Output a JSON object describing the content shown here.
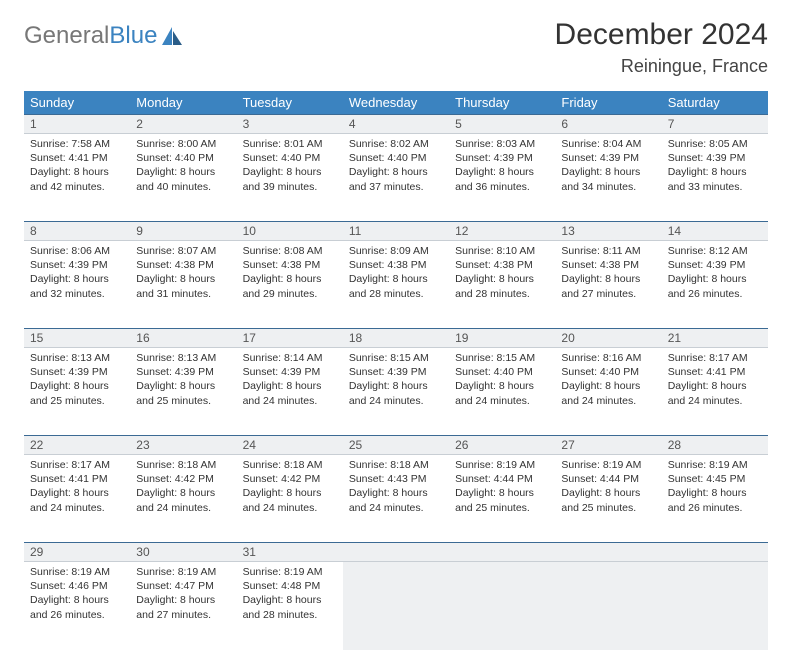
{
  "brand": {
    "part1": "General",
    "part2": "Blue"
  },
  "title": "December 2024",
  "location": "Reiningue, France",
  "colors": {
    "header_bg": "#3b83c0",
    "header_fg": "#ffffff",
    "daynum_bg": "#eef0f2",
    "daynum_border_top": "#3b6a94",
    "text": "#333333"
  },
  "weekdays": [
    "Sunday",
    "Monday",
    "Tuesday",
    "Wednesday",
    "Thursday",
    "Friday",
    "Saturday"
  ],
  "weeks": [
    [
      {
        "n": "1",
        "sr": "Sunrise: 7:58 AM",
        "ss": "Sunset: 4:41 PM",
        "dl": "Daylight: 8 hours and 42 minutes."
      },
      {
        "n": "2",
        "sr": "Sunrise: 8:00 AM",
        "ss": "Sunset: 4:40 PM",
        "dl": "Daylight: 8 hours and 40 minutes."
      },
      {
        "n": "3",
        "sr": "Sunrise: 8:01 AM",
        "ss": "Sunset: 4:40 PM",
        "dl": "Daylight: 8 hours and 39 minutes."
      },
      {
        "n": "4",
        "sr": "Sunrise: 8:02 AM",
        "ss": "Sunset: 4:40 PM",
        "dl": "Daylight: 8 hours and 37 minutes."
      },
      {
        "n": "5",
        "sr": "Sunrise: 8:03 AM",
        "ss": "Sunset: 4:39 PM",
        "dl": "Daylight: 8 hours and 36 minutes."
      },
      {
        "n": "6",
        "sr": "Sunrise: 8:04 AM",
        "ss": "Sunset: 4:39 PM",
        "dl": "Daylight: 8 hours and 34 minutes."
      },
      {
        "n": "7",
        "sr": "Sunrise: 8:05 AM",
        "ss": "Sunset: 4:39 PM",
        "dl": "Daylight: 8 hours and 33 minutes."
      }
    ],
    [
      {
        "n": "8",
        "sr": "Sunrise: 8:06 AM",
        "ss": "Sunset: 4:39 PM",
        "dl": "Daylight: 8 hours and 32 minutes."
      },
      {
        "n": "9",
        "sr": "Sunrise: 8:07 AM",
        "ss": "Sunset: 4:38 PM",
        "dl": "Daylight: 8 hours and 31 minutes."
      },
      {
        "n": "10",
        "sr": "Sunrise: 8:08 AM",
        "ss": "Sunset: 4:38 PM",
        "dl": "Daylight: 8 hours and 29 minutes."
      },
      {
        "n": "11",
        "sr": "Sunrise: 8:09 AM",
        "ss": "Sunset: 4:38 PM",
        "dl": "Daylight: 8 hours and 28 minutes."
      },
      {
        "n": "12",
        "sr": "Sunrise: 8:10 AM",
        "ss": "Sunset: 4:38 PM",
        "dl": "Daylight: 8 hours and 28 minutes."
      },
      {
        "n": "13",
        "sr": "Sunrise: 8:11 AM",
        "ss": "Sunset: 4:38 PM",
        "dl": "Daylight: 8 hours and 27 minutes."
      },
      {
        "n": "14",
        "sr": "Sunrise: 8:12 AM",
        "ss": "Sunset: 4:39 PM",
        "dl": "Daylight: 8 hours and 26 minutes."
      }
    ],
    [
      {
        "n": "15",
        "sr": "Sunrise: 8:13 AM",
        "ss": "Sunset: 4:39 PM",
        "dl": "Daylight: 8 hours and 25 minutes."
      },
      {
        "n": "16",
        "sr": "Sunrise: 8:13 AM",
        "ss": "Sunset: 4:39 PM",
        "dl": "Daylight: 8 hours and 25 minutes."
      },
      {
        "n": "17",
        "sr": "Sunrise: 8:14 AM",
        "ss": "Sunset: 4:39 PM",
        "dl": "Daylight: 8 hours and 24 minutes."
      },
      {
        "n": "18",
        "sr": "Sunrise: 8:15 AM",
        "ss": "Sunset: 4:39 PM",
        "dl": "Daylight: 8 hours and 24 minutes."
      },
      {
        "n": "19",
        "sr": "Sunrise: 8:15 AM",
        "ss": "Sunset: 4:40 PM",
        "dl": "Daylight: 8 hours and 24 minutes."
      },
      {
        "n": "20",
        "sr": "Sunrise: 8:16 AM",
        "ss": "Sunset: 4:40 PM",
        "dl": "Daylight: 8 hours and 24 minutes."
      },
      {
        "n": "21",
        "sr": "Sunrise: 8:17 AM",
        "ss": "Sunset: 4:41 PM",
        "dl": "Daylight: 8 hours and 24 minutes."
      }
    ],
    [
      {
        "n": "22",
        "sr": "Sunrise: 8:17 AM",
        "ss": "Sunset: 4:41 PM",
        "dl": "Daylight: 8 hours and 24 minutes."
      },
      {
        "n": "23",
        "sr": "Sunrise: 8:18 AM",
        "ss": "Sunset: 4:42 PM",
        "dl": "Daylight: 8 hours and 24 minutes."
      },
      {
        "n": "24",
        "sr": "Sunrise: 8:18 AM",
        "ss": "Sunset: 4:42 PM",
        "dl": "Daylight: 8 hours and 24 minutes."
      },
      {
        "n": "25",
        "sr": "Sunrise: 8:18 AM",
        "ss": "Sunset: 4:43 PM",
        "dl": "Daylight: 8 hours and 24 minutes."
      },
      {
        "n": "26",
        "sr": "Sunrise: 8:19 AM",
        "ss": "Sunset: 4:44 PM",
        "dl": "Daylight: 8 hours and 25 minutes."
      },
      {
        "n": "27",
        "sr": "Sunrise: 8:19 AM",
        "ss": "Sunset: 4:44 PM",
        "dl": "Daylight: 8 hours and 25 minutes."
      },
      {
        "n": "28",
        "sr": "Sunrise: 8:19 AM",
        "ss": "Sunset: 4:45 PM",
        "dl": "Daylight: 8 hours and 26 minutes."
      }
    ],
    [
      {
        "n": "29",
        "sr": "Sunrise: 8:19 AM",
        "ss": "Sunset: 4:46 PM",
        "dl": "Daylight: 8 hours and 26 minutes."
      },
      {
        "n": "30",
        "sr": "Sunrise: 8:19 AM",
        "ss": "Sunset: 4:47 PM",
        "dl": "Daylight: 8 hours and 27 minutes."
      },
      {
        "n": "31",
        "sr": "Sunrise: 8:19 AM",
        "ss": "Sunset: 4:48 PM",
        "dl": "Daylight: 8 hours and 28 minutes."
      },
      null,
      null,
      null,
      null
    ]
  ]
}
